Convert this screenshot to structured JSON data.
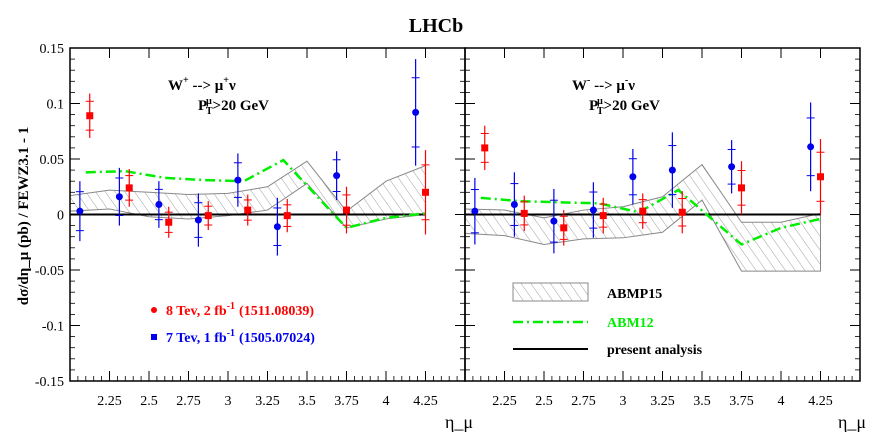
{
  "title": "LHCb",
  "colors": {
    "red": "#ff0000",
    "blue": "#0000ee",
    "green": "#00ee00",
    "band": "#888888",
    "text": "#000000"
  },
  "axes": {
    "ylabel": "dσ/dη_μ (pb) / FEWZ3.1 - 1",
    "xlabel": "η_μ",
    "ylim": [
      -0.15,
      0.15
    ],
    "xlim": [
      2.0,
      4.5
    ],
    "y_ticks": [
      "0.15",
      "0.1",
      "0.05",
      "0",
      "-0.05",
      "-0.1",
      "-0.15"
    ],
    "x_ticks": [
      "2.25",
      "2.5",
      "2.75",
      "3",
      "3.25",
      "3.5",
      "3.75",
      "4",
      "4.25"
    ]
  },
  "legend_left": {
    "red_label": "8 Tev, 2 fb",
    "red_sup": "-1",
    "red_ref": "(1511.08039)",
    "blue_label": "7 Tev, 1 fb",
    "blue_sup": "-1",
    "blue_ref": "(1505.07024)"
  },
  "legend_right": {
    "band_label": "ABMP15",
    "line_label": "ABM12",
    "present_label": "present analysis"
  },
  "chart_data": [
    {
      "type": "scatter",
      "panel": "W+",
      "annotation_main": "W",
      "annotation_sup": "+",
      "annotation_arrow": " --> μ",
      "annotation_sup2": "+",
      "annotation_end": "ν",
      "cut_text": ">20 GeV",
      "cut_symbol": "P",
      "cut_sub": "T",
      "cut_sup": "μ",
      "band_x": [
        2.0,
        2.25,
        2.5,
        2.75,
        3.0,
        3.25,
        3.5,
        3.75,
        4.0,
        4.25
      ],
      "band_upper": [
        0.017,
        0.022,
        0.02,
        0.018,
        0.019,
        0.025,
        0.048,
        0.003,
        0.03,
        0.044
      ],
      "band_lower": [
        0.003,
        0.005,
        -0.002,
        -0.004,
        -0.001,
        0.004,
        0.028,
        -0.012,
        -0.004,
        0.0
      ],
      "abm12": {
        "x": [
          2.1,
          2.35,
          2.6,
          2.85,
          3.1,
          3.35,
          3.75,
          4.0,
          4.25
        ],
        "y": [
          0.038,
          0.039,
          0.033,
          0.031,
          0.03,
          0.049,
          -0.012,
          -0.003,
          0.001
        ]
      },
      "series": [
        {
          "name": "8 Tev, 2 fb-1 (1511.08039)",
          "x": [
            2.125,
            2.375,
            2.625,
            2.875,
            3.125,
            3.375,
            3.75,
            4.25
          ],
          "y": [
            0.089,
            0.024,
            -0.007,
            -0.001,
            0.004,
            -0.001,
            0.004,
            0.02
          ],
          "err": [
            0.02,
            0.017,
            0.014,
            0.013,
            0.014,
            0.015,
            0.021,
            0.038
          ]
        },
        {
          "name": "7 Tev, 1 fb-1 (1505.07024)",
          "x": [
            2.0625,
            2.3125,
            2.5625,
            2.8125,
            3.0625,
            3.3125,
            3.6875,
            4.1875
          ],
          "y": [
            0.003,
            0.016,
            0.009,
            -0.005,
            0.031,
            -0.011,
            0.035,
            0.092
          ],
          "err": [
            0.027,
            0.026,
            0.021,
            0.024,
            0.024,
            0.026,
            0.022,
            0.048
          ]
        }
      ]
    },
    {
      "type": "scatter",
      "panel": "W-",
      "annotation_main": "W",
      "annotation_sup": "-",
      "annotation_arrow": " --> μ",
      "annotation_sup2": "-",
      "annotation_end": "ν",
      "cut_text": ">20 GeV",
      "cut_symbol": "P",
      "cut_sub": "T",
      "cut_sup": "μ",
      "band_x": [
        2.0,
        2.25,
        2.5,
        2.75,
        3.0,
        3.25,
        3.5,
        3.75,
        4.0,
        4.25
      ],
      "band_upper": [
        0.005,
        0.004,
        -0.003,
        0.004,
        0.007,
        0.016,
        0.045,
        -0.007,
        -0.007,
        0.001
      ],
      "band_lower": [
        -0.017,
        -0.019,
        -0.027,
        -0.022,
        -0.021,
        -0.016,
        0.013,
        -0.051,
        -0.051,
        -0.051
      ],
      "abm12": {
        "x": [
          2.1,
          2.35,
          2.6,
          2.85,
          3.1,
          3.35,
          3.75,
          4.0,
          4.25
        ],
        "y": [
          0.015,
          0.012,
          0.011,
          0.01,
          0.002,
          0.022,
          -0.027,
          -0.012,
          -0.004
        ]
      },
      "series": [
        {
          "name": "8 Tev, 2 fb-1 (1511.08039)",
          "x": [
            2.125,
            2.375,
            2.625,
            2.875,
            3.125,
            3.375,
            3.75,
            4.25
          ],
          "y": [
            0.06,
            0.001,
            -0.012,
            -0.001,
            0.003,
            0.002,
            0.024,
            0.034
          ],
          "err": [
            0.02,
            0.016,
            0.016,
            0.016,
            0.016,
            0.019,
            0.024,
            0.034
          ]
        },
        {
          "name": "7 Tev, 1 fb-1 (1505.07024)",
          "x": [
            2.0625,
            2.3125,
            2.5625,
            2.8125,
            3.0625,
            3.3125,
            3.6875,
            4.1875
          ],
          "y": [
            0.003,
            0.009,
            -0.006,
            0.004,
            0.034,
            0.04,
            0.043,
            0.061
          ],
          "err": [
            0.03,
            0.029,
            0.029,
            0.025,
            0.025,
            0.034,
            0.024,
            0.04
          ]
        }
      ]
    }
  ]
}
